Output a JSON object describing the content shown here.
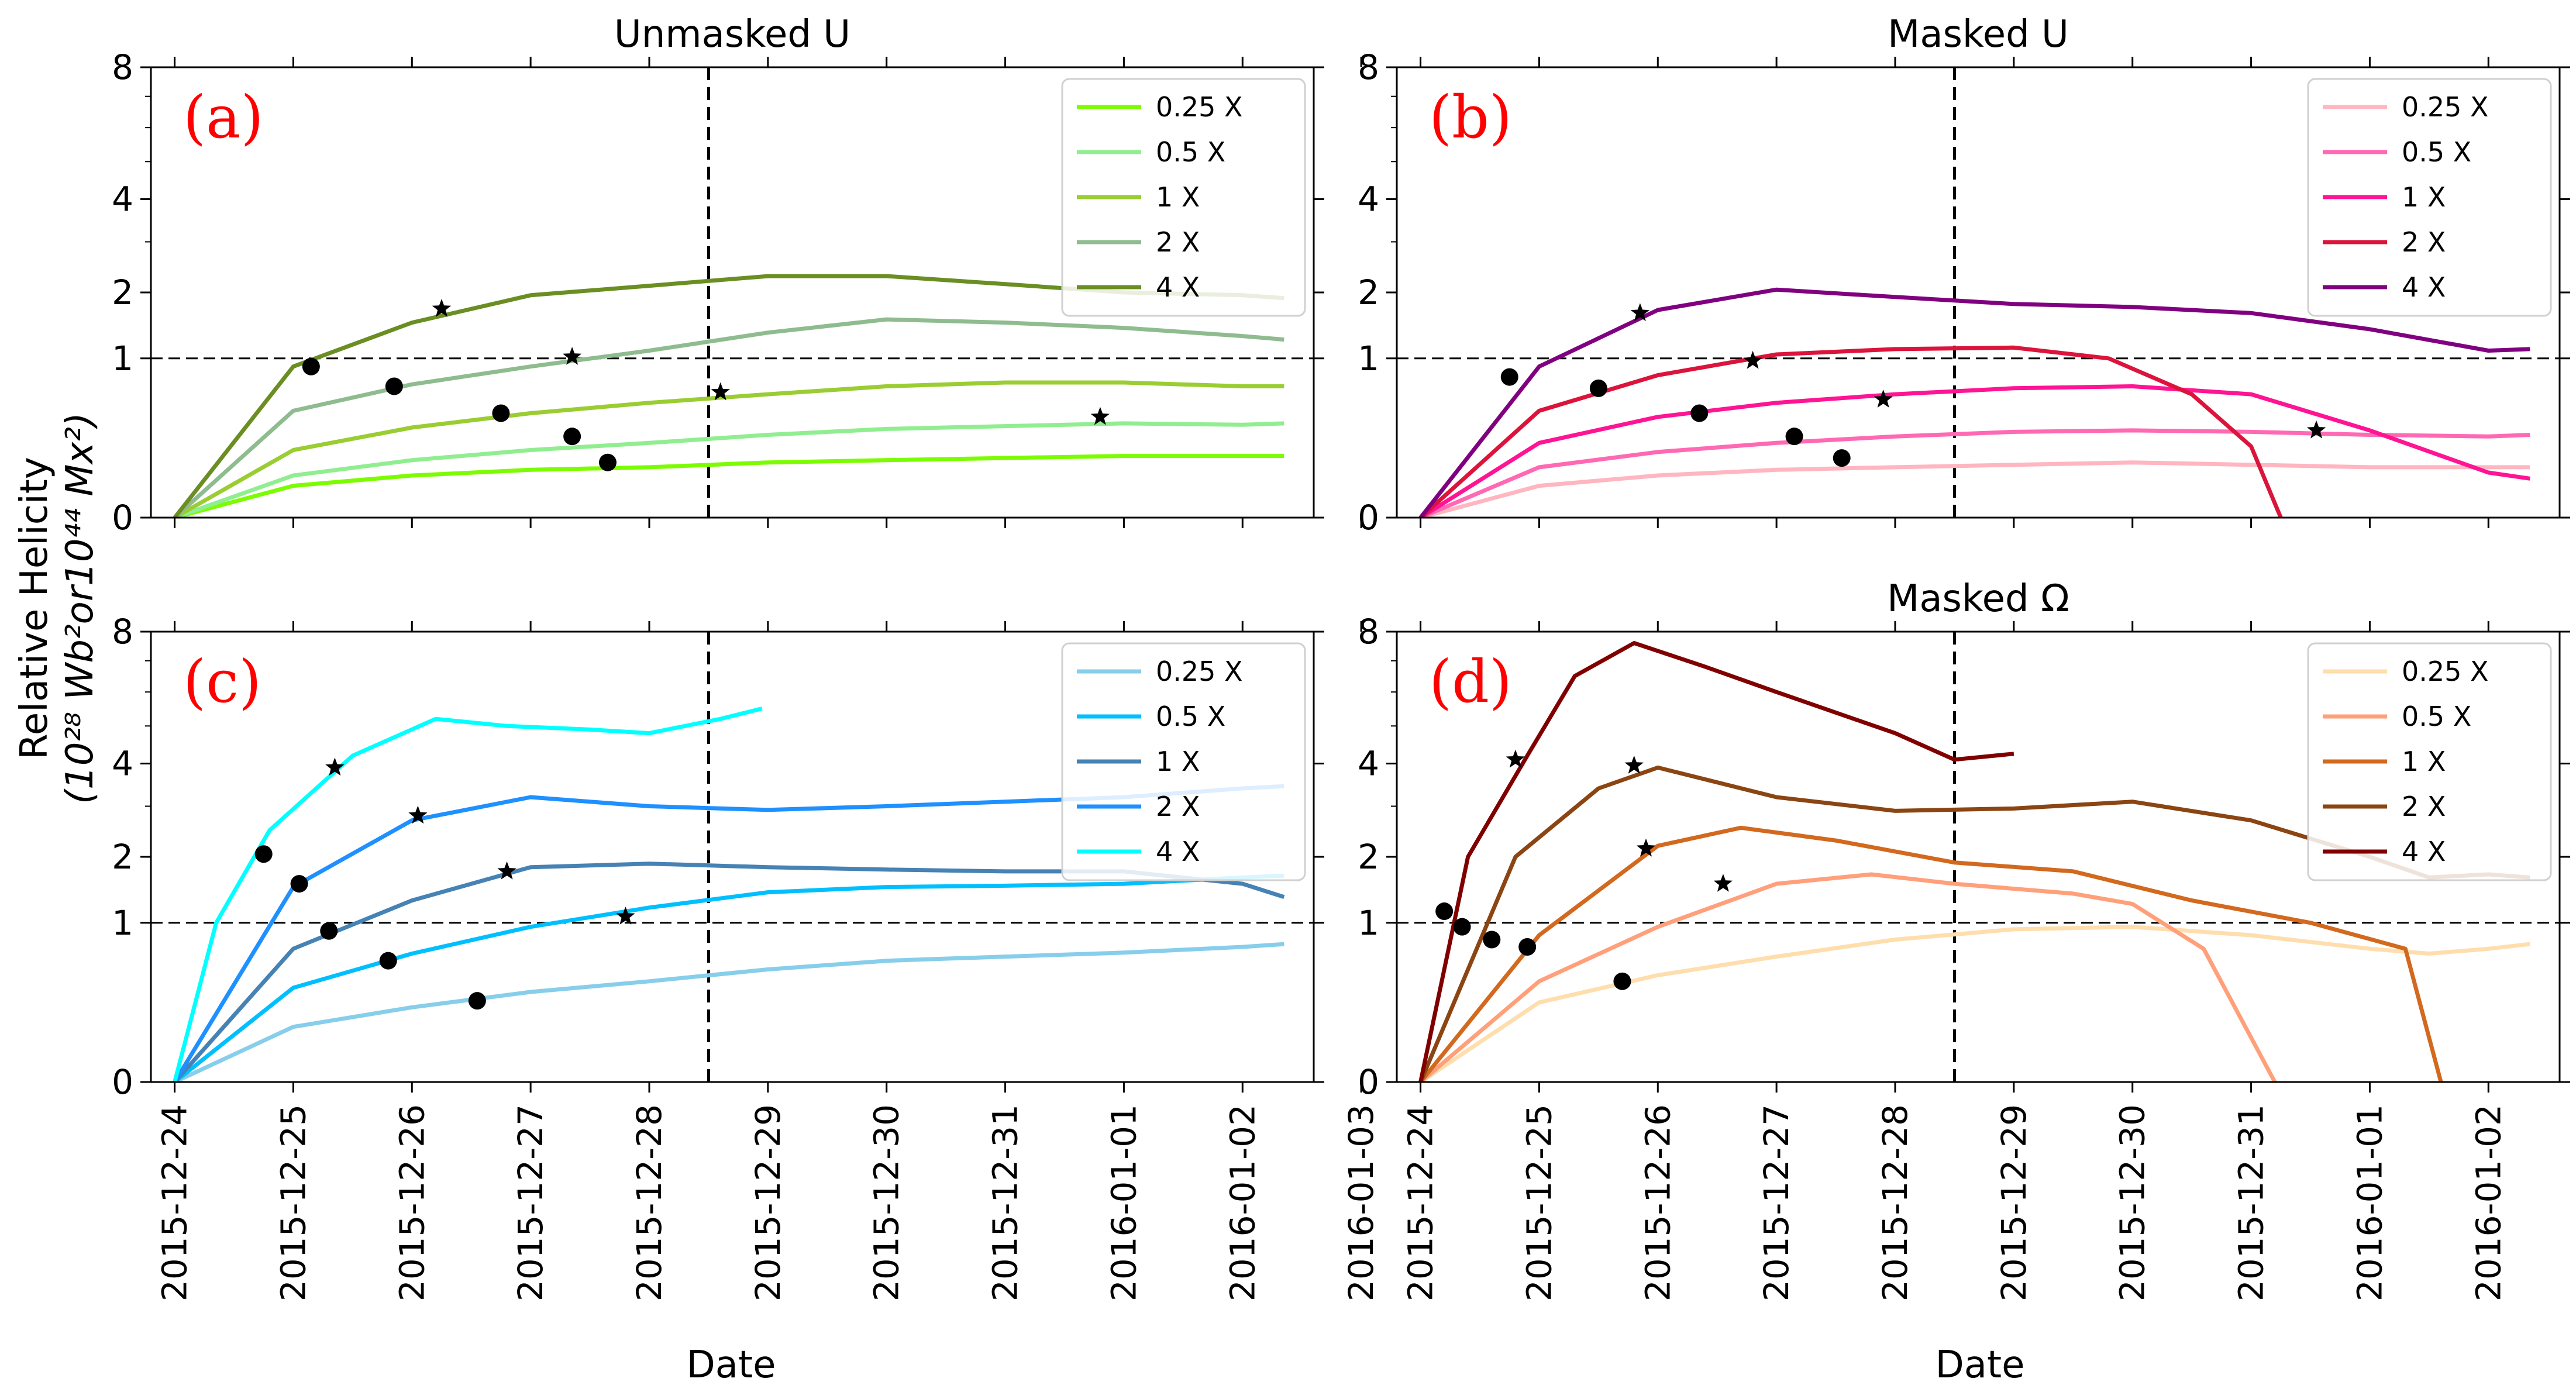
{
  "figure": {
    "ylabel_line1": "Relative Helicity",
    "ylabel_line2": "(10²⁸ Wb²or10⁴⁴ Mx²)",
    "xlabel": "Date"
  },
  "axes": {
    "x_ticks": [
      "2015-12-24",
      "2015-12-25",
      "2015-12-26",
      "2015-12-27",
      "2015-12-28",
      "2015-12-29",
      "2015-12-30",
      "2015-12-31",
      "2016-01-01",
      "2016-01-02",
      "2016-01-03"
    ],
    "y_ticks": [
      0,
      1,
      2,
      4,
      8
    ],
    "y_scale": "sqrt",
    "ylim": [
      0,
      8
    ],
    "xlim_days": [
      -0.2,
      9.6
    ],
    "vline_day": 4.5,
    "hline_value": 1
  },
  "chart_data": [
    {
      "type": "line",
      "letter": "(a)",
      "title": "Unmasked U",
      "legend": "top-right",
      "series": [
        {
          "name": "0.25 X",
          "color": "#7cfc00",
          "points": [
            [
              0,
              0
            ],
            [
              1,
              0.04
            ],
            [
              2,
              0.07
            ],
            [
              3,
              0.09
            ],
            [
              4,
              0.1
            ],
            [
              5,
              0.12
            ],
            [
              6,
              0.13
            ],
            [
              7,
              0.14
            ],
            [
              8,
              0.15
            ],
            [
              9,
              0.15
            ],
            [
              9.35,
              0.15
            ]
          ]
        },
        {
          "name": "0.5 X",
          "color": "#90ee90",
          "points": [
            [
              0,
              0
            ],
            [
              1,
              0.07
            ],
            [
              2,
              0.13
            ],
            [
              3,
              0.18
            ],
            [
              4,
              0.22
            ],
            [
              5,
              0.27
            ],
            [
              6,
              0.31
            ],
            [
              7,
              0.33
            ],
            [
              8,
              0.35
            ],
            [
              9,
              0.34
            ],
            [
              9.35,
              0.35
            ]
          ]
        },
        {
          "name": "1 X",
          "color": "#9acd32",
          "points": [
            [
              0,
              0
            ],
            [
              1,
              0.18
            ],
            [
              2,
              0.32
            ],
            [
              3,
              0.43
            ],
            [
              4,
              0.52
            ],
            [
              5,
              0.6
            ],
            [
              6,
              0.68
            ],
            [
              7,
              0.72
            ],
            [
              8,
              0.72
            ],
            [
              9,
              0.68
            ],
            [
              9.35,
              0.68
            ]
          ]
        },
        {
          "name": "2 X",
          "color": "#8fbc8f",
          "points": [
            [
              0,
              0
            ],
            [
              1,
              0.45
            ],
            [
              2,
              0.7
            ],
            [
              3,
              0.9
            ],
            [
              4,
              1.1
            ],
            [
              5,
              1.35
            ],
            [
              6,
              1.55
            ],
            [
              7,
              1.5
            ],
            [
              8,
              1.42
            ],
            [
              9,
              1.3
            ],
            [
              9.35,
              1.25
            ]
          ]
        },
        {
          "name": "4 X",
          "color": "#6b8e23",
          "points": [
            [
              0,
              0
            ],
            [
              1,
              0.9
            ],
            [
              2,
              1.5
            ],
            [
              3,
              1.95
            ],
            [
              4,
              2.12
            ],
            [
              5,
              2.3
            ],
            [
              6,
              2.3
            ],
            [
              7,
              2.15
            ],
            [
              8,
              2.0
            ],
            [
              9,
              1.95
            ],
            [
              9.35,
              1.9
            ]
          ]
        }
      ],
      "circles": [
        [
          1.15,
          0.9
        ],
        [
          1.85,
          0.68
        ],
        [
          2.75,
          0.43
        ],
        [
          3.35,
          0.26
        ],
        [
          3.65,
          0.12
        ]
      ],
      "stars": [
        [
          2.25,
          1.72
        ],
        [
          3.35,
          1.02
        ],
        [
          4.6,
          0.62
        ],
        [
          7.8,
          0.4
        ]
      ]
    },
    {
      "type": "line",
      "letter": "(b)",
      "title": "Masked U",
      "legend": "top-right",
      "series": [
        {
          "name": "0.25 X",
          "color": "#ffb6c1",
          "points": [
            [
              0,
              0
            ],
            [
              1,
              0.04
            ],
            [
              2,
              0.07
            ],
            [
              3,
              0.09
            ],
            [
              4,
              0.1
            ],
            [
              5,
              0.11
            ],
            [
              6,
              0.12
            ],
            [
              7,
              0.11
            ],
            [
              8,
              0.1
            ],
            [
              9,
              0.1
            ],
            [
              9.35,
              0.1
            ]
          ]
        },
        {
          "name": "0.5 X",
          "color": "#ff69b4",
          "points": [
            [
              0,
              0
            ],
            [
              1,
              0.1
            ],
            [
              2,
              0.17
            ],
            [
              3,
              0.22
            ],
            [
              4,
              0.26
            ],
            [
              5,
              0.29
            ],
            [
              6,
              0.3
            ],
            [
              7,
              0.29
            ],
            [
              8,
              0.27
            ],
            [
              9,
              0.26
            ],
            [
              9.35,
              0.27
            ]
          ]
        },
        {
          "name": "1 X",
          "color": "#ff1493",
          "points": [
            [
              0,
              0
            ],
            [
              1,
              0.22
            ],
            [
              2,
              0.4
            ],
            [
              3,
              0.52
            ],
            [
              4,
              0.6
            ],
            [
              5,
              0.66
            ],
            [
              6,
              0.68
            ],
            [
              7,
              0.6
            ],
            [
              8,
              0.3
            ],
            [
              9,
              0.08
            ],
            [
              9.35,
              0.06
            ]
          ]
        },
        {
          "name": "2 X",
          "color": "#dc143c",
          "points": [
            [
              0,
              0
            ],
            [
              1,
              0.45
            ],
            [
              2,
              0.8
            ],
            [
              3,
              1.05
            ],
            [
              4,
              1.12
            ],
            [
              5,
              1.14
            ],
            [
              5.8,
              1.0
            ],
            [
              6.5,
              0.6
            ],
            [
              7.0,
              0.2
            ],
            [
              7.25,
              0
            ]
          ]
        },
        {
          "name": "4 X",
          "color": "#800080",
          "points": [
            [
              0,
              0
            ],
            [
              1,
              0.9
            ],
            [
              2,
              1.7
            ],
            [
              3,
              2.05
            ],
            [
              4,
              1.92
            ],
            [
              5,
              1.8
            ],
            [
              6,
              1.75
            ],
            [
              7,
              1.65
            ],
            [
              8,
              1.4
            ],
            [
              9,
              1.1
            ],
            [
              9.35,
              1.12
            ]
          ]
        }
      ],
      "circles": [
        [
          0.75,
          0.78
        ],
        [
          1.5,
          0.66
        ],
        [
          2.35,
          0.43
        ],
        [
          3.15,
          0.26
        ],
        [
          3.55,
          0.14
        ]
      ],
      "stars": [
        [
          1.85,
          1.65
        ],
        [
          2.8,
          0.97
        ],
        [
          3.9,
          0.55
        ],
        [
          7.55,
          0.3
        ]
      ]
    },
    {
      "type": "line",
      "letter": "(c)",
      "title": "",
      "legend": "top-right",
      "series": [
        {
          "name": "0.25 X",
          "color": "#87ceeb",
          "points": [
            [
              0,
              0
            ],
            [
              1,
              0.12
            ],
            [
              2,
              0.22
            ],
            [
              3,
              0.32
            ],
            [
              4,
              0.4
            ],
            [
              5,
              0.5
            ],
            [
              6,
              0.58
            ],
            [
              7,
              0.62
            ],
            [
              8,
              0.66
            ],
            [
              9,
              0.72
            ],
            [
              9.35,
              0.75
            ]
          ]
        },
        {
          "name": "0.5 X",
          "color": "#00bfff",
          "points": [
            [
              0,
              0
            ],
            [
              1,
              0.35
            ],
            [
              2,
              0.65
            ],
            [
              3,
              0.95
            ],
            [
              4,
              1.2
            ],
            [
              5,
              1.42
            ],
            [
              6,
              1.5
            ],
            [
              7,
              1.52
            ],
            [
              8,
              1.55
            ],
            [
              9,
              1.65
            ],
            [
              9.35,
              1.68
            ]
          ]
        },
        {
          "name": "1 X",
          "color": "#4682b4",
          "points": [
            [
              0,
              0
            ],
            [
              1,
              0.7
            ],
            [
              2,
              1.3
            ],
            [
              3,
              1.82
            ],
            [
              4,
              1.88
            ],
            [
              5,
              1.82
            ],
            [
              6,
              1.78
            ],
            [
              7,
              1.75
            ],
            [
              8,
              1.75
            ],
            [
              9,
              1.55
            ],
            [
              9.35,
              1.35
            ]
          ]
        },
        {
          "name": "2 X",
          "color": "#1e90ff",
          "points": [
            [
              0,
              0
            ],
            [
              1,
              1.5
            ],
            [
              2,
              2.7
            ],
            [
              3,
              3.2
            ],
            [
              4,
              3.0
            ],
            [
              5,
              2.92
            ],
            [
              6,
              3.0
            ],
            [
              7,
              3.1
            ],
            [
              8,
              3.2
            ],
            [
              9,
              3.4
            ],
            [
              9.35,
              3.45
            ]
          ]
        },
        {
          "name": "4 X",
          "color": "#00ffff",
          "points": [
            [
              0,
              0
            ],
            [
              0.35,
              1.0
            ],
            [
              0.8,
              2.5
            ],
            [
              1.5,
              4.2
            ],
            [
              2.2,
              5.2
            ],
            [
              2.8,
              5.0
            ],
            [
              3.5,
              4.9
            ],
            [
              4.0,
              4.8
            ],
            [
              4.6,
              5.2
            ],
            [
              4.95,
              5.5
            ]
          ]
        }
      ],
      "circles": [
        [
          0.75,
          2.05
        ],
        [
          1.05,
          1.55
        ],
        [
          1.3,
          0.9
        ],
        [
          1.8,
          0.58
        ],
        [
          2.55,
          0.26
        ]
      ],
      "stars": [
        [
          1.35,
          3.9
        ],
        [
          2.05,
          2.8
        ],
        [
          2.8,
          1.75
        ],
        [
          3.8,
          1.08
        ]
      ]
    },
    {
      "type": "line",
      "letter": "(d)",
      "title": "Masked Ω",
      "legend": "top-right",
      "series": [
        {
          "name": "0.25 X",
          "color": "#ffdead",
          "points": [
            [
              0,
              0
            ],
            [
              1,
              0.25
            ],
            [
              2,
              0.45
            ],
            [
              3,
              0.62
            ],
            [
              4,
              0.8
            ],
            [
              5,
              0.92
            ],
            [
              6,
              0.95
            ],
            [
              7,
              0.85
            ],
            [
              8,
              0.7
            ],
            [
              8.5,
              0.65
            ],
            [
              9,
              0.7
            ],
            [
              9.35,
              0.75
            ]
          ]
        },
        {
          "name": "0.5 X",
          "color": "#ffa07a",
          "points": [
            [
              0,
              0
            ],
            [
              1,
              0.4
            ],
            [
              2,
              0.95
            ],
            [
              3,
              1.55
            ],
            [
              3.8,
              1.7
            ],
            [
              4.5,
              1.55
            ],
            [
              5.5,
              1.4
            ],
            [
              6,
              1.25
            ],
            [
              6.6,
              0.7
            ],
            [
              7.2,
              0
            ]
          ]
        },
        {
          "name": "1 X",
          "color": "#d2691e",
          "points": [
            [
              0,
              0
            ],
            [
              1,
              0.85
            ],
            [
              2,
              2.2
            ],
            [
              2.7,
              2.55
            ],
            [
              3.5,
              2.3
            ],
            [
              4.5,
              1.9
            ],
            [
              5.5,
              1.75
            ],
            [
              6.5,
              1.3
            ],
            [
              7.5,
              1.0
            ],
            [
              8.3,
              0.7
            ],
            [
              8.6,
              0
            ]
          ]
        },
        {
          "name": "2 X",
          "color": "#8b4513",
          "points": [
            [
              0,
              0
            ],
            [
              0.8,
              2.0
            ],
            [
              1.5,
              3.4
            ],
            [
              2.0,
              3.9
            ],
            [
              3,
              3.2
            ],
            [
              4,
              2.9
            ],
            [
              5,
              2.95
            ],
            [
              6,
              3.1
            ],
            [
              7,
              2.7
            ],
            [
              8,
              2.0
            ],
            [
              8.5,
              1.65
            ],
            [
              9,
              1.7
            ],
            [
              9.35,
              1.65
            ]
          ]
        },
        {
          "name": "4 X",
          "color": "#800000",
          "points": [
            [
              0,
              0
            ],
            [
              0.4,
              2.0
            ],
            [
              0.9,
              4.2
            ],
            [
              1.3,
              6.5
            ],
            [
              1.8,
              7.6
            ],
            [
              2.4,
              6.8
            ],
            [
              3,
              6.0
            ],
            [
              4,
              4.8
            ],
            [
              4.5,
              4.1
            ],
            [
              5,
              4.25
            ]
          ]
        }
      ],
      "circles": [
        [
          0.2,
          1.15
        ],
        [
          0.35,
          0.95
        ],
        [
          0.6,
          0.8
        ],
        [
          0.9,
          0.72
        ],
        [
          1.7,
          0.4
        ]
      ],
      "stars": [
        [
          0.8,
          4.1
        ],
        [
          1.8,
          3.95
        ],
        [
          1.9,
          2.15
        ],
        [
          2.55,
          1.55
        ]
      ]
    }
  ]
}
